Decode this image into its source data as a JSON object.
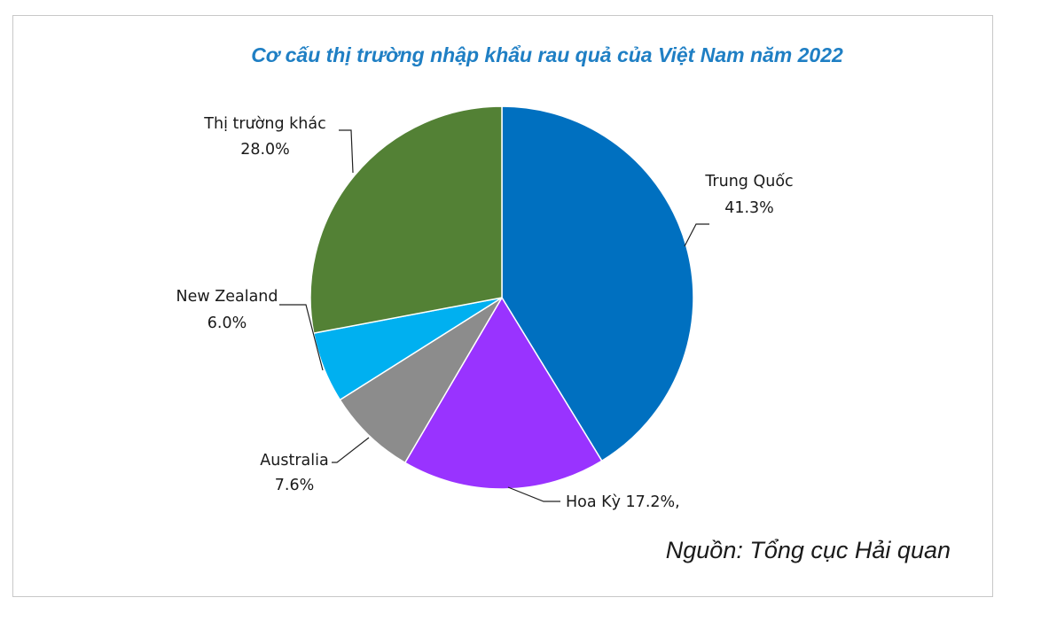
{
  "chart_data": {
    "type": "pie",
    "title": "Cơ cấu thị trường nhập khẩu rau quả của Việt Nam năm 2022",
    "source_note": "Nguồn: Tổng cục Hải quan",
    "slices": [
      {
        "name": "Trung Quốc",
        "value": 41.3,
        "label_value": "41.3%",
        "color": "#0070c0"
      },
      {
        "name": "Hoa Kỳ",
        "value": 17.2,
        "label_value": "17.2%,",
        "color": "#9933ff"
      },
      {
        "name": "Australia",
        "value": 7.6,
        "label_value": "7.6%",
        "color": "#8c8c8c"
      },
      {
        "name": "New Zealand",
        "value": 6.0,
        "label_value": "6.0%",
        "color": "#00b0f0"
      },
      {
        "name": "Thị trường khác",
        "value": 28.0,
        "label_value": "28.0%",
        "color": "#538135"
      }
    ],
    "start_angle_deg": 0,
    "direction": "clockwise"
  }
}
